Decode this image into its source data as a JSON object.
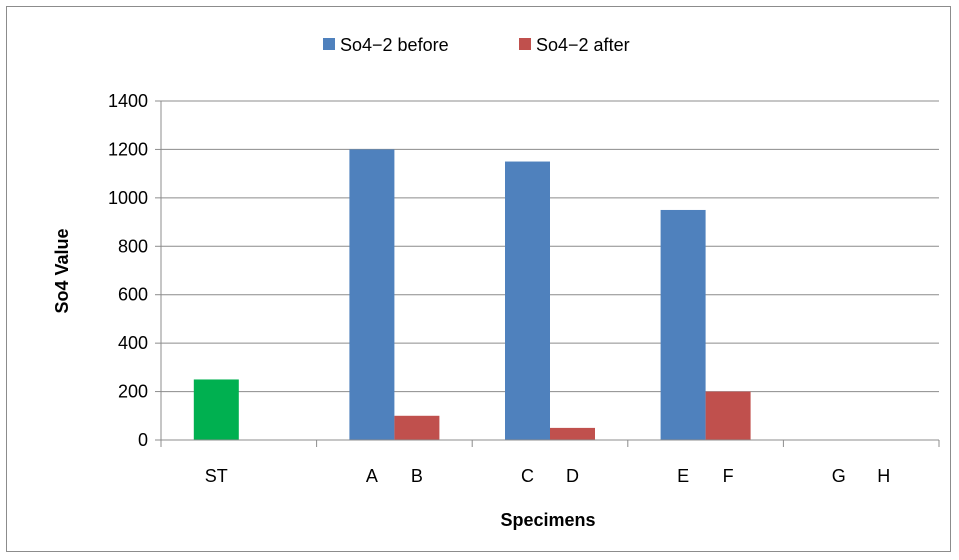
{
  "chart_data": {
    "type": "bar",
    "title": "",
    "xlabel": "Specimens",
    "ylabel": "So4 Value",
    "ylim": [
      0,
      1400
    ],
    "yticks": [
      0,
      200,
      400,
      600,
      800,
      1000,
      1200,
      1400
    ],
    "grid": true,
    "legend_position": "top-center",
    "groups": [
      "ST",
      "A B",
      "C D",
      "E F",
      "G H"
    ],
    "category_labels": [
      {
        "group": 0,
        "labels": [
          "ST"
        ]
      },
      {
        "group": 1,
        "labels": [
          "A",
          "B"
        ]
      },
      {
        "group": 2,
        "labels": [
          "C",
          "D"
        ]
      },
      {
        "group": 3,
        "labels": [
          "E",
          "F"
        ]
      },
      {
        "group": 4,
        "labels": [
          "G",
          "H"
        ]
      }
    ],
    "series": [
      {
        "name": "So4−2 before",
        "color": "#4f81bd",
        "values": [
          250,
          1200,
          1150,
          950,
          0
        ],
        "point_colors": [
          "#00b050",
          null,
          null,
          null,
          null
        ]
      },
      {
        "name": "So4−2 after",
        "color": "#c0504d",
        "values": [
          0,
          100,
          50,
          200,
          0
        ]
      }
    ]
  }
}
